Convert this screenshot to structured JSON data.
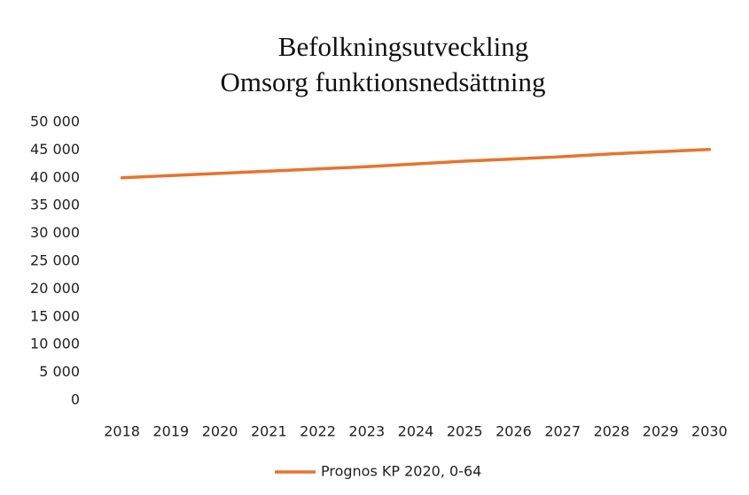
{
  "chart_data": {
    "type": "line",
    "title": [
      "Befolkningsutveckling",
      "Omsorg funktionsnedsättning"
    ],
    "categories": [
      "2018",
      "2019",
      "2020",
      "2021",
      "2022",
      "2023",
      "2024",
      "2025",
      "2026",
      "2027",
      "2028",
      "2029",
      "2030"
    ],
    "series": [
      {
        "name": "Prognos KP 2020, 0-64",
        "color": "#e8742c",
        "values": [
          40000,
          40400,
          40800,
          41200,
          41600,
          42000,
          42500,
          43000,
          43400,
          43800,
          44300,
          44700,
          45100
        ]
      }
    ],
    "ylim": [
      0,
      50000
    ],
    "yticks": [
      0,
      {
        "value": 5000,
        "label": "5 000"
      },
      {
        "value": 10000,
        "label": "10 000"
      },
      {
        "value": 15000,
        "label": "15 000"
      },
      {
        "value": 20000,
        "label": "20 000"
      },
      {
        "value": 25000,
        "label": "25 000"
      },
      {
        "value": 30000,
        "label": "30 000"
      },
      {
        "value": 35000,
        "label": "35 000"
      },
      {
        "value": 40000,
        "label": "40 000"
      },
      {
        "value": 45000,
        "label": "45 000"
      },
      {
        "value": 50000,
        "label": "50 000"
      }
    ],
    "grid": false,
    "legend": "bottom"
  }
}
